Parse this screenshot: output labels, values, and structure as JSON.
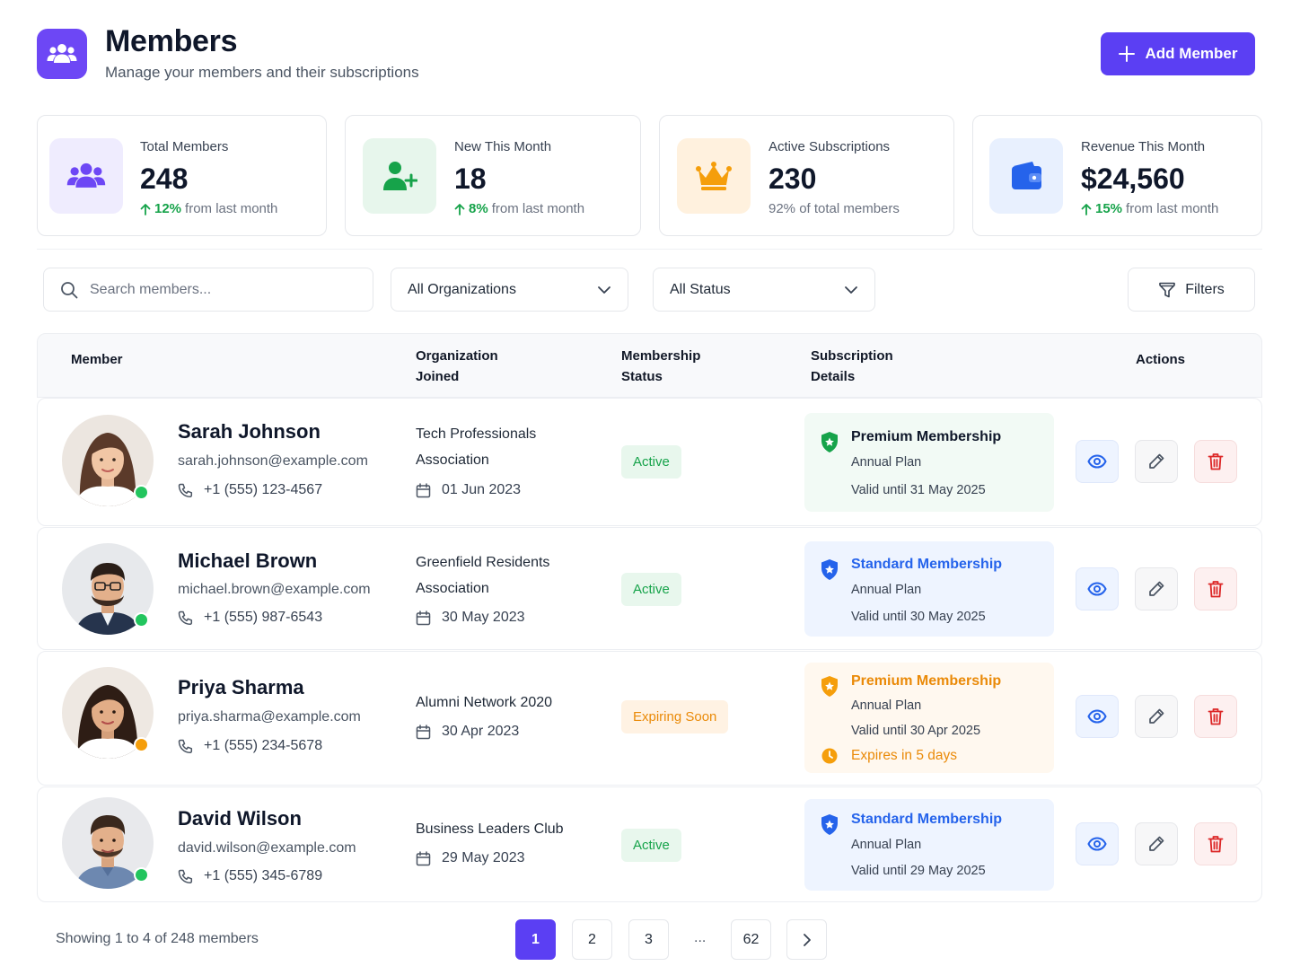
{
  "header": {
    "title": "Members",
    "subtitle": "Manage your members and their subscriptions",
    "add_button_label": "Add Member"
  },
  "stats": [
    {
      "label": "Total Members",
      "value": "248",
      "trend_pct": "12%",
      "trend_text": "from last month",
      "icon": "users-icon",
      "color": "#6d47f5"
    },
    {
      "label": "New This Month",
      "value": "18",
      "trend_pct": "8%",
      "trend_text": "from last month",
      "icon": "user-plus-icon",
      "color": "#16a34a"
    },
    {
      "label": "Active Subscriptions",
      "value": "230",
      "trend_text": "92% of total members",
      "icon": "crown-icon",
      "color": "#f59e0b"
    },
    {
      "label": "Revenue This Month",
      "value": "$24,560",
      "trend_pct": "15%",
      "trend_text": "from last month",
      "icon": "wallet-icon",
      "color": "#2563eb"
    }
  ],
  "filters": {
    "search_placeholder": "Search members...",
    "organization": "All Organizations",
    "status": "All Status",
    "filters_label": "Filters"
  },
  "table": {
    "headers": {
      "member": "Member",
      "organization": "Organization Joined",
      "status": "Membership Status",
      "subscription": "Subscription Details",
      "actions": "Actions"
    },
    "rows": [
      {
        "name": "Sarah Johnson",
        "email": "sarah.johnson@example.com",
        "phone": "+1 (555) 123-4567",
        "organization": "Tech Professionals Association",
        "joined": "01 Jun 2023",
        "status": "Active",
        "presence": "online",
        "plan": "Premium Membership",
        "billing": "Annual Plan",
        "valid": "Valid until 31 May 2025",
        "note": ""
      },
      {
        "name": "Michael Brown",
        "email": "michael.brown@example.com",
        "phone": "+1 (555) 987-6543",
        "organization": "Greenfield Residents Association",
        "joined": "30 May 2023",
        "status": "Active",
        "presence": "online",
        "plan": "Standard Membership",
        "billing": "Annual Plan",
        "valid": "Valid until 30 May 2025",
        "note": ""
      },
      {
        "name": "Priya Sharma",
        "email": "priya.sharma@example.com",
        "phone": "+1 (555) 234-5678",
        "organization": "Alumni Network 2020",
        "joined": "30 Apr 2023",
        "status": "Expiring Soon",
        "presence": "away",
        "plan": "Premium Membership",
        "billing": "Annual Plan",
        "valid": "Valid until 30 Apr 2025",
        "note": "Expires in 5 days"
      },
      {
        "name": "David Wilson",
        "email": "david.wilson@example.com",
        "phone": "+1 (555) 345-6789",
        "organization": "Business Leaders Club",
        "joined": "29 May 2023",
        "status": "Active",
        "presence": "online",
        "plan": "Standard Membership",
        "billing": "Annual Plan",
        "valid": "Valid until 29 May 2025",
        "note": ""
      }
    ]
  },
  "pagination": {
    "showing": "Showing 1 to 4 of 248 members",
    "pages": [
      "1",
      "2",
      "3",
      "62"
    ],
    "current": "1",
    "ellipsis": "..."
  },
  "colors": {
    "accent": "#5b3ff3",
    "active": "#16a34a",
    "expiring": "#ea8a08",
    "standard": "#2563eb",
    "danger": "#dc2626"
  }
}
